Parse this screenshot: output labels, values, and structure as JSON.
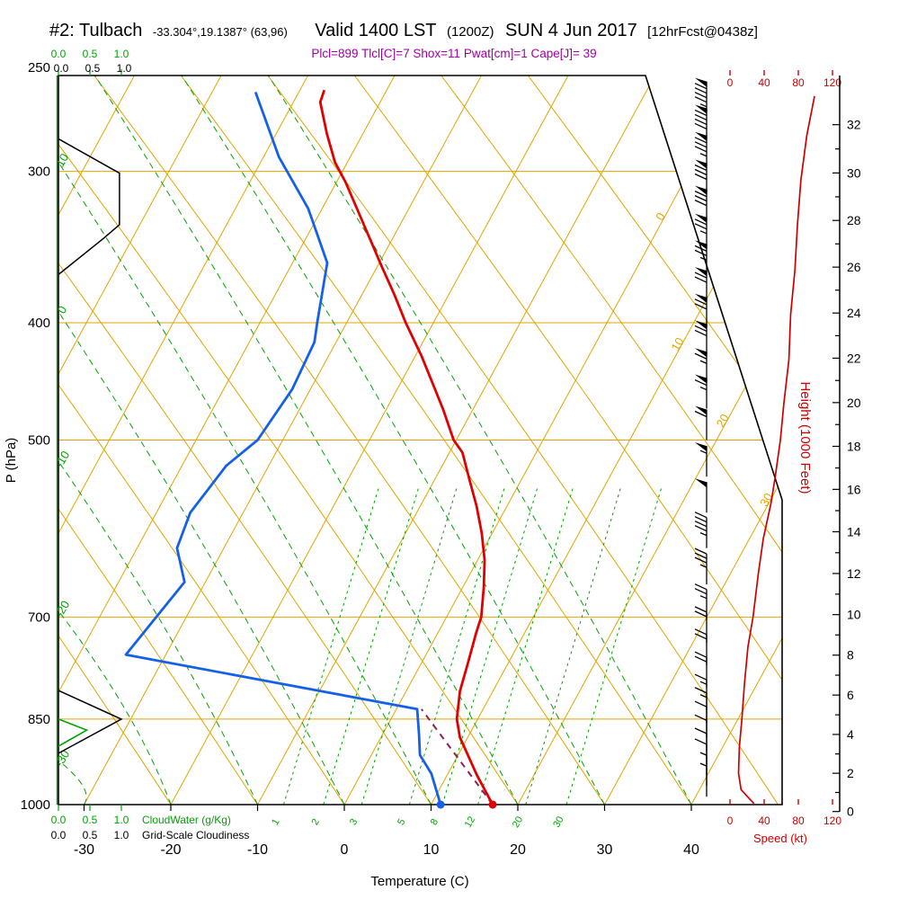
{
  "header": {
    "station": "#2: Tulbach",
    "coords": "-33.304°,19.1387° (63,96)",
    "valid": "Valid 1400 LST",
    "valid_zulu": "(1200Z)",
    "valid_date": "SUN 4 Jun 2017",
    "forecast_tag": "[12hrFcst@0438z]",
    "indices": "Plcl=899 Tlcl[C]=7 Shox=11 Pwat[cm]=1 Cape[J]= 39"
  },
  "axes": {
    "pressure": {
      "title": "P (hPa)",
      "ticks": [
        250,
        300,
        400,
        500,
        700,
        850,
        1000
      ]
    },
    "temperature": {
      "title": "Temperature (C)",
      "ticks": [
        -30,
        -20,
        -10,
        0,
        10,
        20,
        30,
        40
      ]
    },
    "height": {
      "title": "Height (1000 Feet)",
      "ticks": [
        0,
        2,
        4,
        6,
        8,
        10,
        12,
        14,
        16,
        18,
        20,
        22,
        24,
        26,
        28,
        30,
        32
      ]
    },
    "speed": {
      "title": "Speed (kt)",
      "ticks": [
        0,
        40,
        80,
        120
      ]
    },
    "cloudwater": {
      "title": "CloudWater (g/Kg)",
      "ticks": [
        "0.0",
        "0.5",
        "1.0"
      ]
    },
    "cloudiness": {
      "title": "Grid-Scale Cloudiness",
      "ticks": [
        "0.0",
        "0.5",
        "1.0"
      ]
    }
  },
  "grid_labels": {
    "isotherms": [
      "0",
      "10",
      "20",
      "30"
    ],
    "moist_adiabats": [
      "10",
      "0",
      "-10",
      "-20",
      "-30"
    ],
    "mixing_ratio": [
      "1",
      "2",
      "3",
      "5",
      "8",
      "12",
      "20",
      "30"
    ]
  },
  "colors": {
    "grid_gold": "#e0a400",
    "grid_green": "#00a300",
    "temperature_red": "#e10000",
    "dewpoint_blue": "#1560e8",
    "parcel_maroon": "#8a2050",
    "indices_purple": "#a000a0",
    "speed_red": "#cc0000",
    "black": "#000000"
  },
  "chart_data": {
    "type": "line",
    "variant": "skew-t log-p sounding",
    "title": "#2: Tulbach — Valid 1400 LST (1200Z) SUN 4 Jun 2017",
    "x_axis": {
      "label": "Temperature (C)",
      "range": [
        -35,
        45
      ]
    },
    "y_axis": {
      "label": "P (hPa)",
      "range": [
        1000,
        250
      ],
      "scale": "log"
    },
    "secondary_axes": {
      "right": "Height (1000 Feet), 0 to 32",
      "speed": "Speed (kt), 0 to 120"
    },
    "series": [
      {
        "name": "Temperature (C)",
        "color": "#e10000",
        "points_p_v": [
          [
            1000,
            17.1
          ],
          [
            945,
            13.4
          ],
          [
            880,
            9.1
          ],
          [
            850,
            7.6
          ],
          [
            806,
            6.2
          ],
          [
            766,
            5.4
          ],
          [
            721,
            4.4
          ],
          [
            700,
            4.0
          ],
          [
            661,
            2.4
          ],
          [
            628,
            0.8
          ],
          [
            597,
            -1.2
          ],
          [
            567,
            -3.5
          ],
          [
            539,
            -6.0
          ],
          [
            512,
            -8.5
          ],
          [
            500,
            -10.3
          ],
          [
            472,
            -13.4
          ],
          [
            448,
            -16.4
          ],
          [
            426,
            -19.3
          ],
          [
            400,
            -23.2
          ],
          [
            379,
            -26.3
          ],
          [
            360,
            -29.4
          ],
          [
            341,
            -32.6
          ],
          [
            323,
            -35.8
          ],
          [
            306,
            -39.0
          ],
          [
            295,
            -41.4
          ],
          [
            279,
            -44.2
          ],
          [
            263,
            -46.9
          ],
          [
            257,
            -47.2
          ]
        ]
      },
      {
        "name": "Dewpoint (C)",
        "color": "#1560e8",
        "points_p_v": [
          [
            1000,
            11.1
          ],
          [
            943,
            8.1
          ],
          [
            910,
            5.6
          ],
          [
            875,
            4.2
          ],
          [
            834,
            2.4
          ],
          [
            752,
            -34.6
          ],
          [
            655,
            -32.4
          ],
          [
            614,
            -35.4
          ],
          [
            574,
            -36.1
          ],
          [
            525,
            -34.9
          ],
          [
            500,
            -32.9
          ],
          [
            454,
            -32.1
          ],
          [
            415,
            -32.5
          ],
          [
            400,
            -33.4
          ],
          [
            357,
            -36.0
          ],
          [
            322,
            -41.6
          ],
          [
            292,
            -48.2
          ],
          [
            258,
            -55.0
          ]
        ]
      },
      {
        "name": "Parcel path (dashed)",
        "color": "#8a2050",
        "points_p_v": [
          [
            1000,
            17.1
          ],
          [
            834,
            2.9
          ]
        ]
      },
      {
        "name": "Wind speed (kt)",
        "color": "#cc0000",
        "points_p_v": [
          [
            260,
            99
          ],
          [
            280,
            90
          ],
          [
            305,
            83
          ],
          [
            332,
            79
          ],
          [
            362,
            76
          ],
          [
            394,
            71
          ],
          [
            429,
            69
          ],
          [
            467,
            63
          ],
          [
            500,
            59
          ],
          [
            536,
            53
          ],
          [
            564,
            48
          ],
          [
            603,
            39
          ],
          [
            646,
            33
          ],
          [
            700,
            27
          ],
          [
            741,
            21
          ],
          [
            794,
            17
          ],
          [
            849,
            14
          ],
          [
            896,
            11
          ],
          [
            942,
            10
          ],
          [
            972,
            13
          ],
          [
            998,
            28
          ]
        ]
      }
    ],
    "wind_barbs_p_kt": [
      [
        268,
        95
      ],
      [
        282,
        90
      ],
      [
        297,
        85
      ],
      [
        313,
        80
      ],
      [
        329,
        78
      ],
      [
        347,
        75
      ],
      [
        365,
        75
      ],
      [
        384,
        72
      ],
      [
        404,
        70
      ],
      [
        425,
        70
      ],
      [
        448,
        65
      ],
      [
        471,
        65
      ],
      [
        500,
        60
      ],
      [
        536,
        55
      ],
      [
        574,
        50
      ],
      [
        614,
        45
      ],
      [
        658,
        35
      ],
      [
        704,
        25
      ],
      [
        735,
        22
      ],
      [
        767,
        20
      ],
      [
        801,
        18
      ],
      [
        836,
        15
      ],
      [
        857,
        14
      ],
      [
        880,
        12
      ],
      [
        903,
        10
      ],
      [
        926,
        10
      ],
      [
        945,
        8
      ],
      [
        965,
        7
      ],
      [
        985,
        5
      ]
    ],
    "cloud_water_profile_v_p": [
      [
        0,
        850
      ],
      [
        0.45,
        868
      ],
      [
        0.18,
        884
      ],
      [
        0,
        895
      ]
    ],
    "grid_scale_cloudiness_profiles_v_p": [
      [
        [
          0,
          282
        ],
        [
          0.97,
          301
        ],
        [
          0.97,
          332
        ],
        [
          0.71,
          341
        ],
        [
          0,
          365
        ]
      ],
      [
        [
          0,
          805
        ],
        [
          1.0,
          850
        ],
        [
          0,
          907
        ]
      ]
    ],
    "surface": {
      "temperature_c": 17.1,
      "dewpoint_c": 11.1
    },
    "lcl": {
      "pressure_hpa": 899,
      "temperature_c": 7
    }
  }
}
